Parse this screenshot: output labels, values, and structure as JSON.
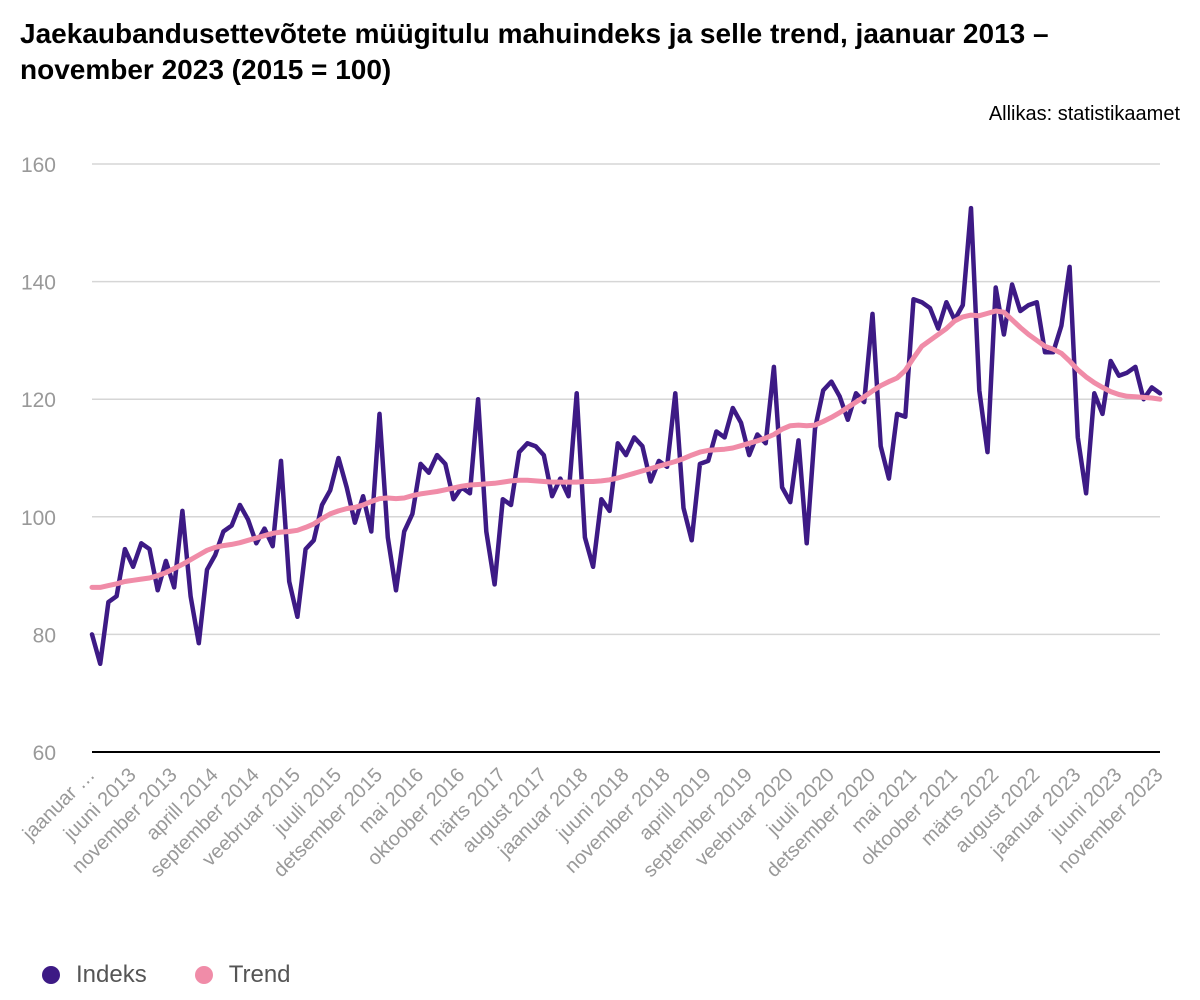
{
  "title": "Jaekaubandusettevõtete müügitulu mahuindeks ja selle trend, jaanuar 2013 – november 2023 (2015 = 100)",
  "source": "Allikas: statistikaamet",
  "colors": {
    "indeks": "#3d1a85",
    "trend": "#f08ca8",
    "grid": "#d6d6d6",
    "axis": "#000000",
    "tick": "#999999"
  },
  "legend": [
    {
      "name": "Indeks",
      "color": "#3d1a85"
    },
    {
      "name": "Trend",
      "color": "#f08ca8"
    }
  ],
  "chart_data": {
    "type": "line",
    "title": "Jaekaubandusettevõtete müügitulu mahuindeks ja selle trend, jaanuar 2013 – november 2023 (2015 = 100)",
    "ylim": [
      60,
      160
    ],
    "yticks": [
      60,
      80,
      100,
      120,
      140,
      160
    ],
    "grid": true,
    "legend_position": "bottom-left",
    "x_tick_labels": [
      "jaanuar …",
      "juuni 2013",
      "november 2013",
      "aprill 2014",
      "september 2014",
      "veebruar 2015",
      "juuli 2015",
      "detsember 2015",
      "mai 2016",
      "oktoober 2016",
      "märts 2017",
      "august 2017",
      "jaanuar 2018",
      "juuni 2018",
      "november 2018",
      "aprill 2019",
      "september 2019",
      "veebruar 2020",
      "juuli 2020",
      "detsember 2020",
      "mai 2021",
      "oktoober 2021",
      "märts 2022",
      "august 2022",
      "jaanuar 2023",
      "juuni 2023",
      "november 2023"
    ],
    "x_tick_indices": [
      0,
      5,
      10,
      15,
      20,
      25,
      30,
      35,
      40,
      45,
      50,
      55,
      60,
      65,
      70,
      75,
      80,
      85,
      90,
      95,
      100,
      105,
      110,
      115,
      120,
      125,
      130
    ],
    "x_start": "jaanuar 2013",
    "x_end": "november 2023",
    "series": [
      {
        "name": "Indeks",
        "values": [
          80,
          75,
          85.5,
          86.5,
          94.5,
          91.5,
          95.5,
          94.5,
          87.5,
          92.5,
          88,
          101,
          86.5,
          78.5,
          91,
          93.5,
          97.5,
          98.5,
          102,
          99.5,
          95.5,
          98,
          95,
          109.5,
          89,
          83,
          94.5,
          96,
          102,
          104.5,
          110,
          105,
          99,
          103.5,
          97.5,
          117.5,
          96.5,
          87.5,
          97.5,
          100.5,
          109,
          107.5,
          110.5,
          109,
          103,
          105,
          104,
          120,
          97.5,
          88.5,
          103,
          102,
          111,
          112.5,
          112,
          110.5,
          103.5,
          106.5,
          103.5,
          121,
          96.5,
          91.5,
          103,
          101,
          112.5,
          110.5,
          113.5,
          112,
          106,
          109.5,
          108.5,
          121,
          101.5,
          96,
          109,
          109.5,
          114.5,
          113.5,
          118.5,
          116,
          110.5,
          114,
          112.5,
          125.5,
          105,
          102.5,
          113,
          95.5,
          115,
          121.5,
          123,
          120.5,
          116.5,
          121,
          119.5,
          134.5,
          112,
          106.5,
          117.5,
          117,
          137,
          136.5,
          135.5,
          132,
          136.5,
          133.5,
          136,
          152.5,
          121.5,
          111,
          139,
          131,
          139.5,
          135,
          136,
          136.5,
          128,
          128,
          132.5,
          142.5,
          113.5,
          104,
          121,
          117.5,
          126.5,
          124,
          124.5,
          125.5,
          120,
          122,
          121
        ]
      },
      {
        "name": "Trend",
        "values": [
          88,
          88,
          88.3,
          88.6,
          89,
          89.2,
          89.4,
          89.6,
          90,
          90.5,
          91.2,
          91.9,
          92.7,
          93.5,
          94.3,
          94.8,
          95.1,
          95.3,
          95.6,
          96,
          96.4,
          96.8,
          97.2,
          97.4,
          97.5,
          97.7,
          98.2,
          98.8,
          99.7,
          100.5,
          101,
          101.4,
          101.6,
          102,
          102.6,
          103.1,
          103.2,
          103.1,
          103.2,
          103.6,
          103.9,
          104.1,
          104.3,
          104.6,
          104.9,
          105.2,
          105.4,
          105.5,
          105.6,
          105.7,
          105.9,
          106.1,
          106.2,
          106.2,
          106.1,
          106,
          105.9,
          105.9,
          105.9,
          105.9,
          106,
          106,
          106.1,
          106.3,
          106.6,
          107,
          107.4,
          107.8,
          108.2,
          108.6,
          109,
          109.4,
          109.9,
          110.5,
          111,
          111.3,
          111.4,
          111.5,
          111.7,
          112.1,
          112.5,
          112.9,
          113.4,
          114,
          114.9,
          115.5,
          115.6,
          115.5,
          115.6,
          116.2,
          116.9,
          117.7,
          118.6,
          119.5,
          120.4,
          121.4,
          122.3,
          123,
          123.6,
          124.9,
          127,
          129,
          130,
          131,
          132,
          133.3,
          134,
          134.3,
          134.2,
          134.6,
          135,
          134.8,
          133.5,
          132.2,
          131,
          130,
          129,
          128.5,
          127.8,
          126.5,
          125,
          123.8,
          122.8,
          122,
          121.3,
          120.8,
          120.5,
          120.4,
          120.3,
          120.2,
          120
        ]
      }
    ]
  }
}
